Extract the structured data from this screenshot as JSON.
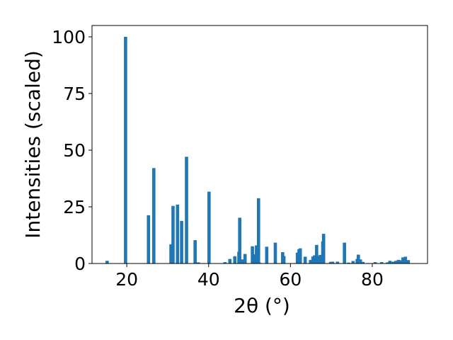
{
  "chart_data": {
    "type": "bar",
    "title": "",
    "xlabel": "2θ (°)",
    "ylabel": "Intensities (scaled)",
    "xlim": [
      11.5,
      93.5
    ],
    "ylim": [
      0,
      105
    ],
    "grid": false,
    "bar_color": "#1f77b4",
    "xticks": [
      20,
      40,
      60,
      80
    ],
    "xtick_labels": [
      "20",
      "40",
      "60",
      "80"
    ],
    "yticks": [
      0,
      25,
      50,
      75,
      100
    ],
    "ytick_labels": [
      "0",
      "25",
      "50",
      "75",
      "100"
    ],
    "x": [
      15.2,
      19.7,
      25.3,
      26.6,
      30.8,
      31.3,
      32.4,
      33.4,
      34.6,
      36.7,
      37.5,
      40.1,
      44.0,
      45.2,
      46.4,
      47.4,
      47.6,
      48.3,
      48.9,
      50.7,
      51.4,
      51.7,
      52.2,
      52.4,
      54.2,
      56.3,
      58.1,
      58.4,
      61.7,
      62.1,
      62.4,
      63.6,
      64.9,
      65.5,
      65.9,
      66.4,
      66.8,
      67.3,
      67.9,
      68.1,
      69.8,
      70.3,
      71.5,
      73.2,
      74.2,
      75.3,
      76.3,
      76.6,
      77.1,
      77.7,
      79.1,
      80.7,
      82.3,
      83.7,
      84.3,
      85.1,
      85.8,
      86.4,
      86.9,
      87.5,
      88.1,
      88.8
    ],
    "values": [
      1.2,
      100,
      21.3,
      42.1,
      8.5,
      25.4,
      26.0,
      18.8,
      47.1,
      10.3,
      0.5,
      31.7,
      0.6,
      2.0,
      3.2,
      5.2,
      20.2,
      1.8,
      4.2,
      7.6,
      4.1,
      8.0,
      28.8,
      0.4,
      7.4,
      9.2,
      5.0,
      3.3,
      4.8,
      6.3,
      6.7,
      3.0,
      1.6,
      3.1,
      3.6,
      8.2,
      3.3,
      3.8,
      9.8,
      13.1,
      0.7,
      0.8,
      0.8,
      9.2,
      0.4,
      1.1,
      2.0,
      3.9,
      1.8,
      0.7,
      0.2,
      0.6,
      0.6,
      0.5,
      1.2,
      0.8,
      1.2,
      1.6,
      1.4,
      2.7,
      3.0,
      1.5
    ]
  }
}
